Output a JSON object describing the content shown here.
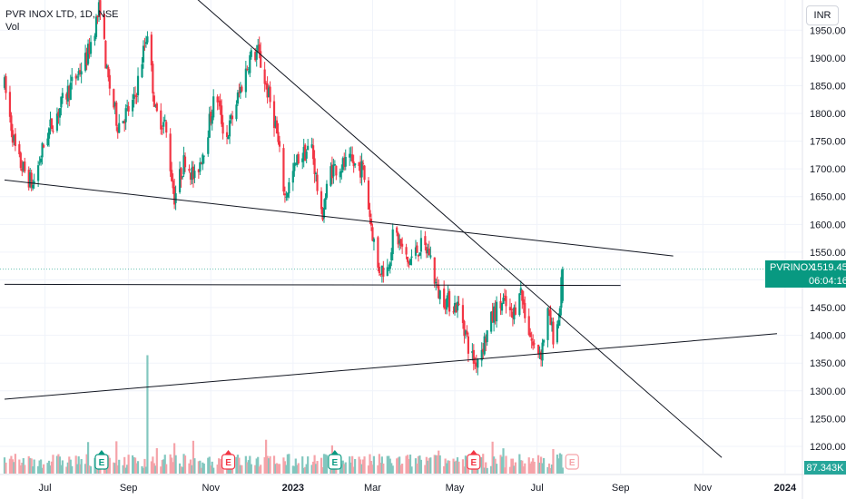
{
  "header": {
    "symbol_line": "PVR INOX LTD, 1D, NSE",
    "volume_label": "Vol"
  },
  "currency_button": "INR",
  "price_tag": {
    "symbol": "PVRINOX",
    "price": "1519.45",
    "countdown": "06:04:16",
    "color": "#089981"
  },
  "volume_tag": {
    "value": "87.343K",
    "color": "#26a69a"
  },
  "colors": {
    "up": "#089981",
    "down": "#f23645",
    "vol_up": "#82c7bf",
    "vol_down": "#f5a3a9",
    "earnings_past": "#089981",
    "earnings_down": "#f23645",
    "earnings_future": "#f5a3a9",
    "trendline": "#131722",
    "price_line": "#089981"
  },
  "chart_data": {
    "type": "candlestick",
    "symbol": "PVRINOX",
    "exchange": "NSE",
    "interval": "1D",
    "y_axis": {
      "ticks": [
        1200,
        1250,
        1300,
        1350,
        1400,
        1450,
        1500,
        1550,
        1600,
        1650,
        1700,
        1750,
        1800,
        1850,
        1900,
        1950
      ],
      "tick_labels": [
        "1200.00",
        "1250.00",
        "1300.00",
        "1350.00",
        "1400.00",
        "1450.00",
        "1500.00",
        "1550.00",
        "1600.00",
        "1650.00",
        "1700.00",
        "1750.00",
        "1800.00",
        "1850.00",
        "1900.00",
        "1950.00"
      ]
    },
    "x_axis": {
      "ticks": [
        "2022-07-01",
        "2022-09-01",
        "2022-11-01",
        "2023-01-01",
        "2023-03-01",
        "2023-05-01",
        "2023-07-01",
        "2023-09-01",
        "2023-11-01",
        "2024-01-01"
      ],
      "tick_labels": [
        "Jul",
        "Sep",
        "Nov",
        "2023",
        "Mar",
        "May",
        "Jul",
        "Sep",
        "Nov",
        "2024"
      ]
    },
    "price_path": [
      [
        "2022-06-01",
        1850
      ],
      [
        "2022-06-10",
        1720
      ],
      [
        "2022-06-22",
        1670
      ],
      [
        "2022-07-02",
        1760
      ],
      [
        "2022-07-18",
        1840
      ],
      [
        "2022-08-01",
        1900
      ],
      [
        "2022-08-11",
        1995
      ],
      [
        "2022-08-16",
        1870
      ],
      [
        "2022-08-24",
        1780
      ],
      [
        "2022-09-05",
        1820
      ],
      [
        "2022-09-15",
        1950
      ],
      [
        "2022-09-21",
        1800
      ],
      [
        "2022-09-28",
        1780
      ],
      [
        "2022-10-05",
        1650
      ],
      [
        "2022-10-13",
        1720
      ],
      [
        "2022-10-20",
        1680
      ],
      [
        "2022-10-27",
        1740
      ],
      [
        "2022-11-05",
        1840
      ],
      [
        "2022-11-12",
        1750
      ],
      [
        "2022-11-20",
        1820
      ],
      [
        "2022-11-30",
        1900
      ],
      [
        "2022-12-06",
        1910
      ],
      [
        "2022-12-12",
        1850
      ],
      [
        "2022-12-19",
        1780
      ],
      [
        "2022-12-26",
        1650
      ],
      [
        "2023-01-05",
        1720
      ],
      [
        "2023-01-15",
        1740
      ],
      [
        "2023-01-22",
        1610
      ],
      [
        "2023-01-29",
        1700
      ],
      [
        "2023-02-12",
        1710
      ],
      [
        "2023-02-22",
        1700
      ],
      [
        "2023-02-28",
        1600
      ],
      [
        "2023-03-05",
        1520
      ],
      [
        "2023-03-12",
        1520
      ],
      [
        "2023-03-17",
        1590
      ],
      [
        "2023-03-27",
        1530
      ],
      [
        "2023-04-05",
        1560
      ],
      [
        "2023-04-12",
        1550
      ],
      [
        "2023-04-18",
        1480
      ],
      [
        "2023-04-26",
        1460
      ],
      [
        "2023-05-05",
        1450
      ],
      [
        "2023-05-12",
        1370
      ],
      [
        "2023-05-16",
        1350
      ],
      [
        "2023-05-23",
        1390
      ],
      [
        "2023-05-30",
        1440
      ],
      [
        "2023-06-06",
        1460
      ],
      [
        "2023-06-13",
        1430
      ],
      [
        "2023-06-18",
        1490
      ],
      [
        "2023-06-23",
        1430
      ],
      [
        "2023-06-28",
        1380
      ],
      [
        "2023-07-04",
        1370
      ],
      [
        "2023-07-09",
        1440
      ],
      [
        "2023-07-13",
        1400
      ],
      [
        "2023-07-17",
        1430
      ],
      [
        "2023-07-20",
        1519
      ]
    ],
    "volume_spikes": [
      [
        "2022-09-15",
        2.9
      ],
      [
        "2023-07-13",
        0.6
      ],
      [
        "2023-07-18",
        0.5
      ]
    ],
    "earnings": [
      {
        "date": "2022-08-12",
        "label": "E",
        "kind": "past_up"
      },
      {
        "date": "2022-11-14",
        "label": "E",
        "kind": "past_down"
      },
      {
        "date": "2023-02-01",
        "label": "E",
        "kind": "past_up"
      },
      {
        "date": "2023-05-15",
        "label": "E",
        "kind": "past_down"
      },
      {
        "date": "2023-07-27",
        "label": "E",
        "kind": "future"
      }
    ],
    "trendlines": [
      {
        "name": "descending-resistance",
        "from": [
          "2022-10-20",
          2010
        ],
        "to": [
          "2023-11-15",
          1180
        ]
      },
      {
        "name": "upper-support",
        "from": [
          "2022-06-01",
          1680
        ],
        "to": [
          "2023-10-10",
          1543
        ]
      },
      {
        "name": "horizontal-level",
        "from": [
          "2022-06-01",
          1492
        ],
        "to": [
          "2023-09-01",
          1490
        ]
      },
      {
        "name": "rising-support",
        "from": [
          "2022-06-01",
          1285
        ],
        "to": [
          "2023-12-26",
          1403
        ]
      }
    ],
    "last_price": 1519.45,
    "last_volume": "87.343K",
    "ylim": [
      1175,
      1975
    ]
  }
}
